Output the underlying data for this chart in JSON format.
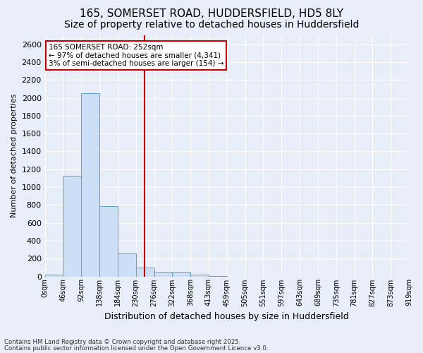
{
  "title1": "165, SOMERSET ROAD, HUDDERSFIELD, HD5 8LY",
  "title2": "Size of property relative to detached houses in Huddersfield",
  "xlabel": "Distribution of detached houses by size in Huddersfield",
  "ylabel": "Number of detached properties",
  "footnote1": "Contains HM Land Registry data © Crown copyright and database right 2025.",
  "footnote2": "Contains public sector information licensed under the Open Government Licence v3.0.",
  "bin_labels": [
    "0sqm",
    "46sqm",
    "92sqm",
    "138sqm",
    "184sqm",
    "230sqm",
    "276sqm",
    "322sqm",
    "368sqm",
    "413sqm",
    "459sqm",
    "505sqm",
    "551sqm",
    "597sqm",
    "643sqm",
    "689sqm",
    "735sqm",
    "781sqm",
    "827sqm",
    "873sqm",
    "919sqm"
  ],
  "values": [
    20,
    1130,
    2050,
    790,
    260,
    100,
    50,
    50,
    20,
    5,
    0,
    0,
    0,
    0,
    0,
    0,
    0,
    0,
    0,
    0
  ],
  "bar_color": "#cce0f5",
  "bar_edge_color": "#5a9fd4",
  "vline_color": "#cc0000",
  "annotation_line1": "165 SOMERSET ROAD: 252sqm",
  "annotation_line2": "← 97% of detached houses are smaller (4,341)",
  "annotation_line3": "3% of semi-detached houses are larger (154) →",
  "annotation_box_color": "#ffffff",
  "annotation_box_edge": "#cc0000",
  "ylim": [
    0,
    2700
  ],
  "yticks": [
    0,
    200,
    400,
    600,
    800,
    1000,
    1200,
    1400,
    1600,
    1800,
    2000,
    2200,
    2400,
    2600
  ],
  "bg_color": "#e8eef7",
  "grid_color": "#ffffff",
  "title_fontsize": 11,
  "subtitle_fontsize": 10
}
